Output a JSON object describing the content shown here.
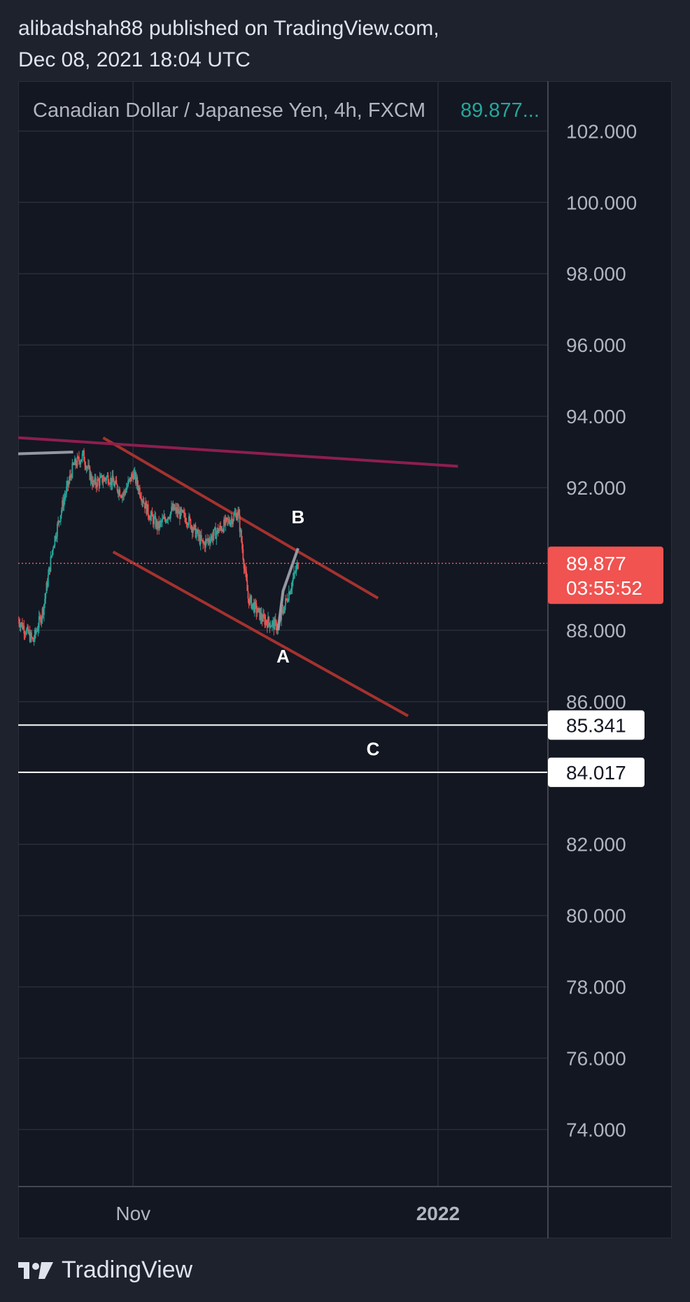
{
  "publication": {
    "line1": "alibadshah88 published on TradingView.com,",
    "line2": "Dec 08, 2021 18:04 UTC"
  },
  "footer": {
    "brand": "TradingView"
  },
  "colors": {
    "background": "#131722",
    "frame": "#1e222d",
    "grid": "#2a2e39",
    "up": "#26a69a",
    "down": "#ef5350",
    "channel": "#a5322e",
    "longTrend": "#8e1e4e",
    "wave": "#9598a1",
    "priceLabel": "#f05350",
    "level": "#ffffff"
  },
  "chart_data": {
    "type": "candlestick",
    "title": "Canadian Dollar / Japanese Yen, 4h, FXCM",
    "last_value_text": "89.877...",
    "ylim": [
      72.4,
      103.4
    ],
    "y_ticks": [
      "102.000",
      "100.000",
      "98.000",
      "96.000",
      "94.000",
      "92.000",
      "88.000",
      "86.000",
      "82.000",
      "80.000",
      "78.000",
      "76.000",
      "74.000"
    ],
    "x_ticks": [
      {
        "label": "Nov",
        "date": "2021-11-01"
      },
      {
        "label": "2022",
        "date": "2022-01-01"
      }
    ],
    "x_range": [
      "2021-10-09",
      "2022-01-23"
    ],
    "current_price": {
      "value": 89.877,
      "label": "89.877",
      "countdown": "03:55:52"
    },
    "levels": [
      {
        "value": 85.341,
        "label": "85.341"
      },
      {
        "value": 84.017,
        "label": "84.017"
      }
    ],
    "annotations": [
      {
        "text": "A",
        "date": "2021-12-01",
        "price": 87.1
      },
      {
        "text": "B",
        "date": "2021-12-04",
        "price": 91.0
      },
      {
        "text": "C",
        "date": "2021-12-19",
        "price": 84.5
      }
    ],
    "trendlines": [
      {
        "name": "channel-top",
        "from": {
          "date": "2021-10-26",
          "price": 93.4
        },
        "to": {
          "date": "2021-12-20",
          "price": 88.9
        }
      },
      {
        "name": "channel-bottom",
        "from": {
          "date": "2021-10-28",
          "price": 90.2
        },
        "to": {
          "date": "2021-12-26",
          "price": 85.6
        }
      },
      {
        "name": "long-trend",
        "from": {
          "date": "2021-10-09",
          "price": 93.4
        },
        "to": {
          "date": "2022-01-05",
          "price": 92.6
        }
      },
      {
        "name": "prior-high",
        "from": {
          "date": "2021-10-09",
          "price": 92.95
        },
        "to": {
          "date": "2021-10-20",
          "price": 93.0
        }
      }
    ],
    "wave_path": [
      {
        "date": "2021-11-30",
        "price": 88.0
      },
      {
        "date": "2021-12-01",
        "price": 89.1
      },
      {
        "date": "2021-12-04",
        "price": 90.3
      }
    ],
    "price_path": [
      {
        "date": "2021-10-09",
        "price": 88.3
      },
      {
        "date": "2021-10-12",
        "price": 87.7
      },
      {
        "date": "2021-10-14",
        "price": 88.6
      },
      {
        "date": "2021-10-16",
        "price": 90.4
      },
      {
        "date": "2021-10-18",
        "price": 91.6
      },
      {
        "date": "2021-10-20",
        "price": 92.6
      },
      {
        "date": "2021-10-22",
        "price": 92.9
      },
      {
        "date": "2021-10-24",
        "price": 92.1
      },
      {
        "date": "2021-10-27",
        "price": 92.3
      },
      {
        "date": "2021-10-30",
        "price": 91.8
      },
      {
        "date": "2021-11-01",
        "price": 92.4
      },
      {
        "date": "2021-11-04",
        "price": 91.3
      },
      {
        "date": "2021-11-06",
        "price": 90.9
      },
      {
        "date": "2021-11-09",
        "price": 91.4
      },
      {
        "date": "2021-11-12",
        "price": 91.1
      },
      {
        "date": "2021-11-15",
        "price": 90.4
      },
      {
        "date": "2021-11-18",
        "price": 90.8
      },
      {
        "date": "2021-11-22",
        "price": 91.3
      },
      {
        "date": "2021-11-24",
        "price": 88.9
      },
      {
        "date": "2021-11-27",
        "price": 88.3
      },
      {
        "date": "2021-11-30",
        "price": 88.1
      },
      {
        "date": "2021-12-02",
        "price": 89.0
      },
      {
        "date": "2021-12-04",
        "price": 89.877
      }
    ]
  }
}
